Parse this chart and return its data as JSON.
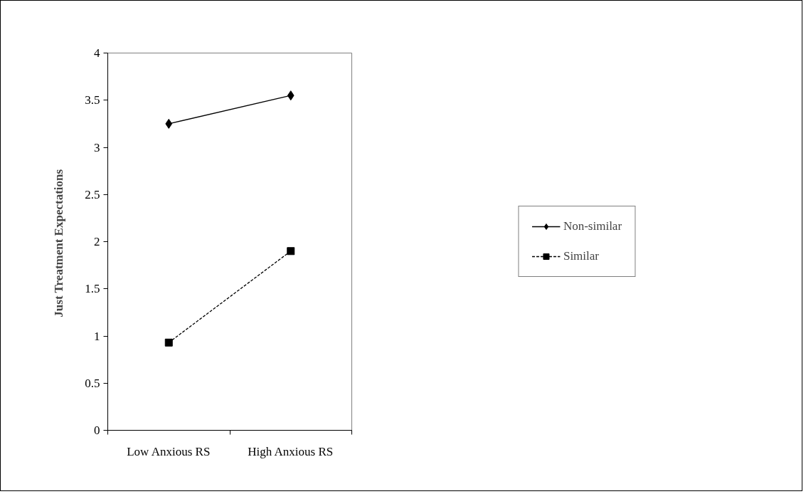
{
  "chart_data": {
    "type": "line",
    "ylabel": "Just Treatment  Expectations",
    "categories": [
      "Low Anxious RS",
      "High Anxious RS"
    ],
    "series": [
      {
        "name": "Non-similar",
        "color": "#000000",
        "values": [
          3.25,
          3.55
        ],
        "marker": "diamond",
        "line_style": "solid"
      },
      {
        "name": "Similar",
        "color": "#000000",
        "values": [
          0.93,
          1.9
        ],
        "marker": "square",
        "line_style": "dashed"
      }
    ],
    "ylim": [
      0,
      4
    ],
    "yticks": [
      0,
      0.5,
      1,
      1.5,
      2,
      2.5,
      3,
      3.5,
      4
    ],
    "grid": false,
    "legend": "right"
  }
}
